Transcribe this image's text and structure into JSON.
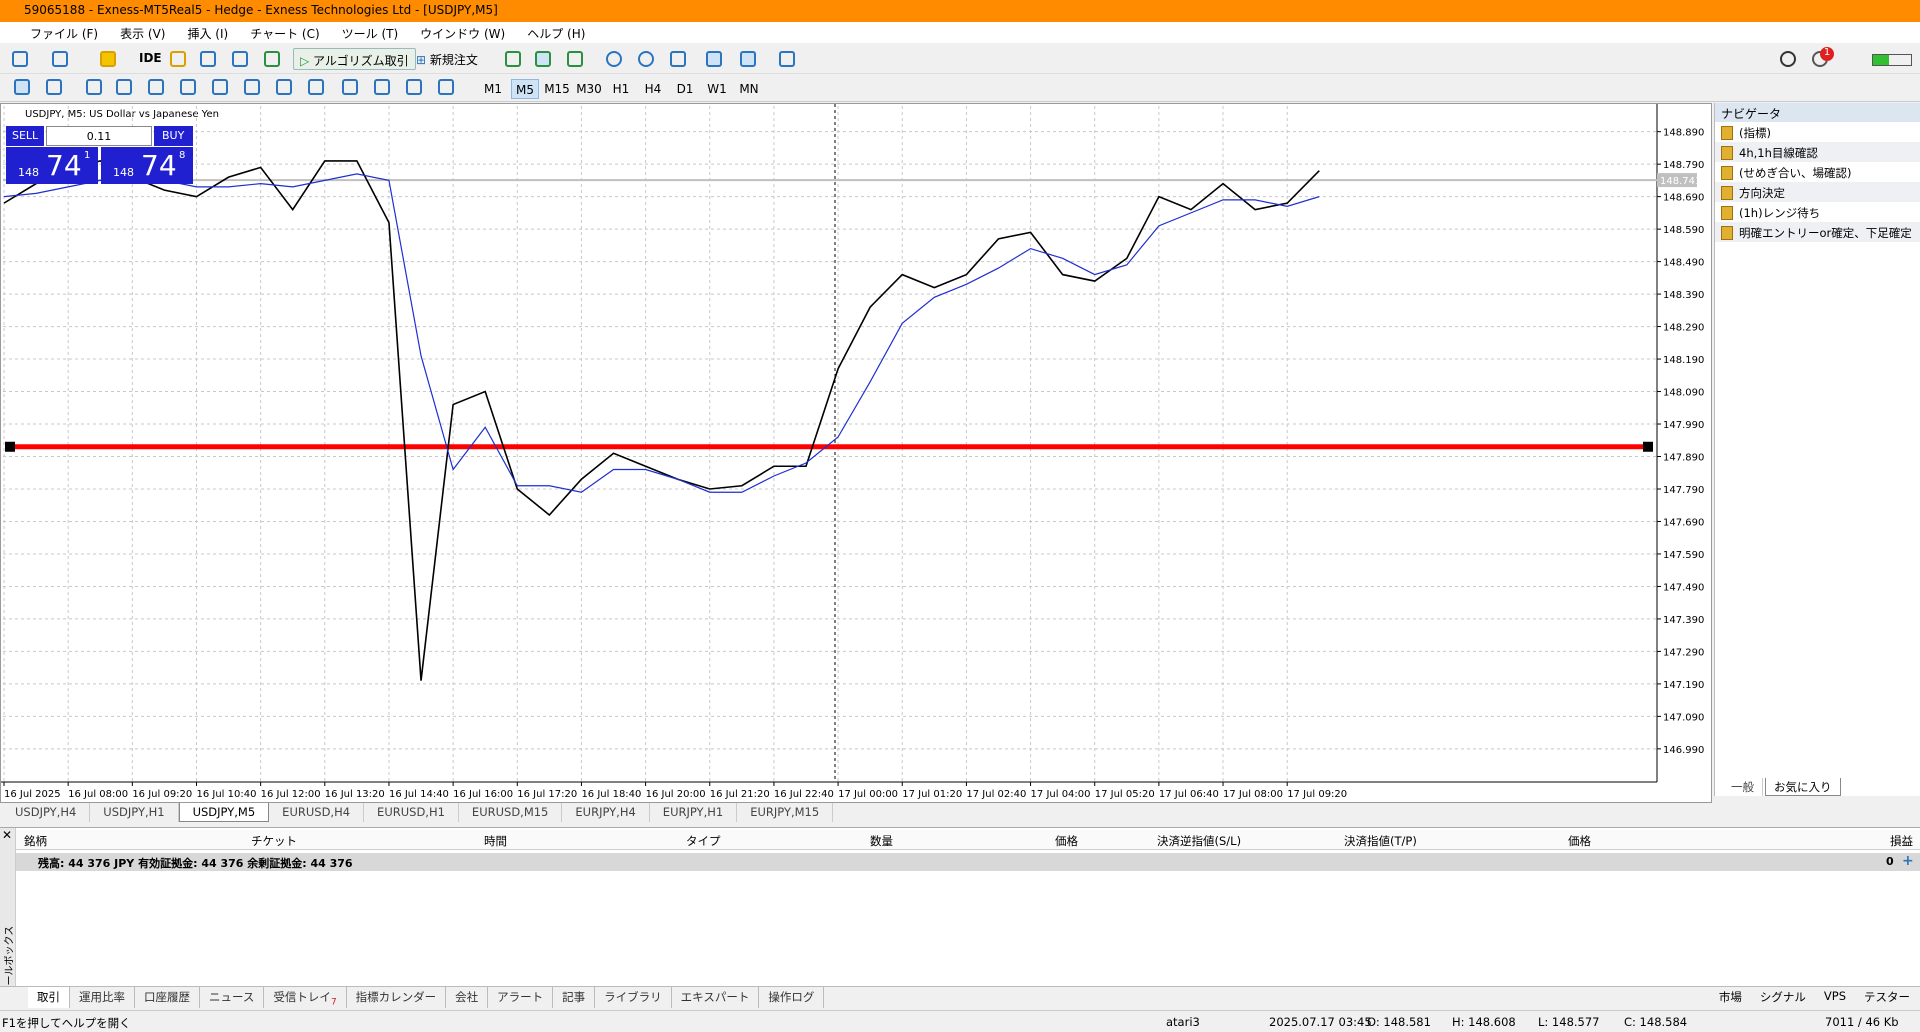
{
  "title_bar": "59065188 - Exness-MT5Real5 - Hedge - Exness Technologies Ltd - [USDJPY,M5]",
  "menu": [
    "ファイル (F)",
    "表示 (V)",
    "挿入 (I)",
    "チャート (C)",
    "ツール (T)",
    "ウインドウ (W)",
    "ヘルプ (H)"
  ],
  "toolbar": {
    "ide": "IDE",
    "algo": "アルゴリズム取引",
    "new_order": "新規注文",
    "badge": "1",
    "timeframes": [
      "M1",
      "M5",
      "M15",
      "M30",
      "H1",
      "H4",
      "D1",
      "W1",
      "MN"
    ],
    "active_timeframe": "M5"
  },
  "chart_data": {
    "type": "line",
    "title": "USDJPY, M5:  US Dollar vs Japanese Yen",
    "categories": [
      "16 Jul 2025",
      null,
      "16 Jul 08:00",
      null,
      "16 Jul 09:20",
      null,
      "16 Jul 10:40",
      null,
      "16 Jul 12:00",
      null,
      "16 Jul 13:20",
      null,
      "16 Jul 14:40",
      null,
      "16 Jul 16:00",
      null,
      "16 Jul 17:20",
      null,
      "16 Jul 18:40",
      null,
      "16 Jul 20:00",
      null,
      "16 Jul 21:20",
      null,
      "16 Jul 22:40",
      null,
      "17 Jul 00:00",
      null,
      "17 Jul 01:20",
      null,
      "17 Jul 02:40",
      null,
      "17 Jul 04:00",
      null,
      "17 Jul 05:20",
      null,
      "17 Jul 06:40",
      null,
      "17 Jul 08:00",
      null,
      "17 Jul 09:20",
      null
    ],
    "series": [
      {
        "color": "#000000",
        "values": [
          148.67,
          148.73,
          148.77,
          148.8,
          148.75,
          148.71,
          148.69,
          148.75,
          148.78,
          148.65,
          148.8,
          148.8,
          148.61,
          147.2,
          148.05,
          148.09,
          147.79,
          147.71,
          147.82,
          147.9,
          147.86,
          147.82,
          147.79,
          147.8,
          147.86,
          147.86,
          148.16,
          148.35,
          148.45,
          148.41,
          148.45,
          148.56,
          148.58,
          148.45,
          148.43,
          148.5,
          148.69,
          148.65,
          148.73,
          148.65,
          148.67,
          148.77
        ]
      },
      {
        "color": "#1f2fd0",
        "values": [
          148.69,
          148.7,
          148.72,
          148.74,
          148.75,
          148.74,
          148.72,
          148.72,
          148.73,
          148.72,
          148.74,
          148.76,
          148.74,
          148.2,
          147.85,
          147.98,
          147.8,
          147.8,
          147.78,
          147.85,
          147.85,
          147.82,
          147.78,
          147.78,
          147.83,
          147.87,
          147.95,
          148.12,
          148.3,
          148.38,
          148.42,
          148.47,
          148.53,
          148.5,
          148.45,
          148.48,
          148.6,
          148.64,
          148.68,
          148.68,
          148.66,
          148.69
        ]
      }
    ],
    "ylim": [
      146.888,
      148.969
    ],
    "yticks": [
      {
        "value": 146.99,
        "label": "146.990"
      },
      {
        "value": 147.09,
        "label": "147.090"
      },
      {
        "value": 147.19,
        "label": "147.190"
      },
      {
        "value": 147.29,
        "label": "147.290"
      },
      {
        "value": 147.39,
        "label": "147.390"
      },
      {
        "value": 147.49,
        "label": "147.490"
      },
      {
        "value": 147.59,
        "label": "147.590"
      },
      {
        "value": 147.69,
        "label": "147.690"
      },
      {
        "value": 147.79,
        "label": "147.790"
      },
      {
        "value": 147.89,
        "label": "147.890"
      },
      {
        "value": 147.99,
        "label": "147.990"
      },
      {
        "value": 148.09,
        "label": "148.090"
      },
      {
        "value": 148.19,
        "label": "148.190"
      },
      {
        "value": 148.29,
        "label": "148.290"
      },
      {
        "value": 148.39,
        "label": "148.390"
      },
      {
        "value": 148.49,
        "label": "148.490"
      },
      {
        "value": 148.59,
        "label": "148.590"
      },
      {
        "value": 148.69,
        "label": "148.690"
      },
      {
        "value": 148.79,
        "label": "148.790"
      },
      {
        "value": 148.89,
        "label": "148.890"
      }
    ],
    "grid": true,
    "hline": {
      "value": 147.92,
      "color": "#ff0000"
    },
    "last_price": 148.741
  },
  "trade_panel": {
    "sell": "SELL",
    "buy": "BUY",
    "volume": "0.11",
    "sell_big": "148",
    "sell_main": "74",
    "sell_sup": "1",
    "buy_big": "148",
    "buy_main": "74",
    "buy_sup": "8"
  },
  "navigator": {
    "title": "ナビゲータ",
    "items": [
      "(指標)",
      "4h,1h目線確認",
      "(せめぎ合い、場確認)",
      "方向決定",
      "(1h)レンジ待ち",
      "明確エントリーor確定、下足確定"
    ],
    "tabs": [
      "一般",
      "お気に入り"
    ]
  },
  "chart_tabs": [
    "USDJPY,H4",
    "USDJPY,H1",
    "USDJPY,M5",
    "EURUSD,H4",
    "EURUSD,H1",
    "EURUSD,M15",
    "EURJPY,H4",
    "EURJPY,H1",
    "EURJPY,M15"
  ],
  "toolbox": {
    "columns": [
      "銘柄",
      "チケット",
      "時間",
      "タイプ",
      "数量",
      "価格",
      "決済逆指値(S/L)",
      "決済指値(T/P)",
      "価格",
      "損益"
    ],
    "balance_row": "残高: 44 376 JPY  有効証拠金: 44 376  余剰証拠金: 44 376",
    "balance_value": "0",
    "side_label": "ツールボックス",
    "tabs": [
      "取引",
      "運用比率",
      "口座履歴",
      "ニュース",
      "受信トレイ",
      "指標カレンダー",
      "会社",
      "アラート",
      "記事",
      "ライブラリ",
      "エキスパート",
      "操作ログ"
    ],
    "inbox_count": "7",
    "right_tabs": [
      "市場",
      "シグナル",
      "VPS",
      "テスター"
    ]
  },
  "status_bar": {
    "help": "F1を押してヘルプを開く",
    "profile": "atari3",
    "time": "2025.07.17 03:45",
    "open": "O: 148.581",
    "high": "H: 148.608",
    "low": "L: 148.577",
    "close": "C: 148.584",
    "traffic": "7011 / 46 Kb"
  }
}
